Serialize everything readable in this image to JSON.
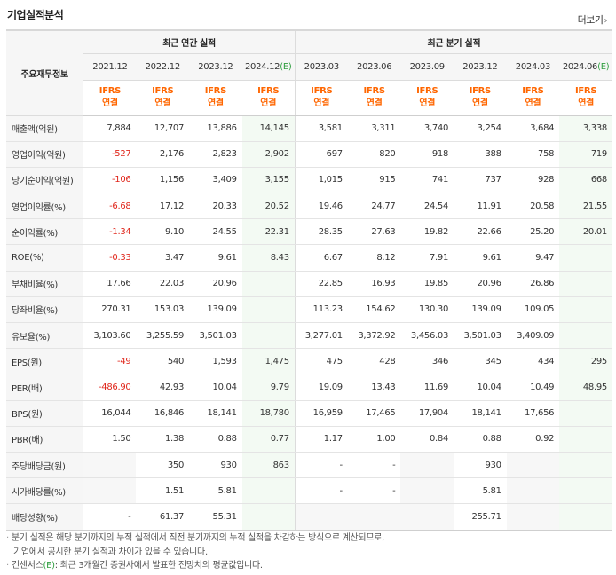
{
  "header": {
    "title": "기업실적분석",
    "more_label": "더보기",
    "more_icon": "chevron-right-icon"
  },
  "table": {
    "row_header_label": "주요재무정보",
    "group_annual": "최근 연간 실적",
    "group_quarter": "최근 분기 실적",
    "est_mark": "(E)",
    "annual_periods": [
      "2021.12",
      "2022.12",
      "2023.12",
      "2024.12"
    ],
    "annual_estimate": [
      false,
      false,
      false,
      true
    ],
    "quarter_periods": [
      "2023.03",
      "2023.06",
      "2023.09",
      "2023.12",
      "2024.03",
      "2024.06"
    ],
    "quarter_estimate": [
      false,
      false,
      false,
      false,
      false,
      true
    ],
    "ifrs_top": "IFRS",
    "ifrs_bottom": "연결",
    "rows": [
      {
        "label": "매출액(억원)",
        "values": [
          "7,884",
          "12,707",
          "13,886",
          "14,145",
          "3,581",
          "3,311",
          "3,740",
          "3,254",
          "3,684",
          "3,338"
        ]
      },
      {
        "label": "영업이익(억원)",
        "values": [
          "-527",
          "2,176",
          "2,823",
          "2,902",
          "697",
          "820",
          "918",
          "388",
          "758",
          "719"
        ]
      },
      {
        "label": "당기순이익(억원)",
        "values": [
          "-106",
          "1,156",
          "3,409",
          "3,155",
          "1,015",
          "915",
          "741",
          "737",
          "928",
          "668"
        ]
      },
      {
        "label": "영업이익률(%)",
        "values": [
          "-6.68",
          "17.12",
          "20.33",
          "20.52",
          "19.46",
          "24.77",
          "24.54",
          "11.91",
          "20.58",
          "21.55"
        ]
      },
      {
        "label": "순이익률(%)",
        "values": [
          "-1.34",
          "9.10",
          "24.55",
          "22.31",
          "28.35",
          "27.63",
          "19.82",
          "22.66",
          "25.20",
          "20.01"
        ]
      },
      {
        "label": "ROE(%)",
        "values": [
          "-0.33",
          "3.47",
          "9.61",
          "8.43",
          "6.67",
          "8.12",
          "7.91",
          "9.61",
          "9.47",
          ""
        ]
      },
      {
        "label": "부채비율(%)",
        "values": [
          "17.66",
          "22.03",
          "20.96",
          "",
          "22.85",
          "16.93",
          "19.85",
          "20.96",
          "26.86",
          ""
        ]
      },
      {
        "label": "당좌비율(%)",
        "values": [
          "270.31",
          "153.03",
          "139.09",
          "",
          "113.23",
          "154.62",
          "130.30",
          "139.09",
          "109.05",
          ""
        ]
      },
      {
        "label": "유보율(%)",
        "values": [
          "3,103.60",
          "3,255.59",
          "3,501.03",
          "",
          "3,277.01",
          "3,372.92",
          "3,456.03",
          "3,501.03",
          "3,409.09",
          ""
        ]
      },
      {
        "label": "EPS(원)",
        "values": [
          "-49",
          "540",
          "1,593",
          "1,475",
          "475",
          "428",
          "346",
          "345",
          "434",
          "295"
        ]
      },
      {
        "label": "PER(배)",
        "values": [
          "-486.90",
          "42.93",
          "10.04",
          "9.79",
          "19.09",
          "13.43",
          "11.69",
          "10.04",
          "10.49",
          "48.95"
        ]
      },
      {
        "label": "BPS(원)",
        "values": [
          "16,044",
          "16,846",
          "18,141",
          "18,780",
          "16,959",
          "17,465",
          "17,904",
          "18,141",
          "17,656",
          ""
        ]
      },
      {
        "label": "PBR(배)",
        "values": [
          "1.50",
          "1.38",
          "0.88",
          "0.77",
          "1.17",
          "1.00",
          "0.84",
          "0.88",
          "0.92",
          ""
        ]
      },
      {
        "label": "주당배당금(원)",
        "values": [
          "",
          "350",
          "930",
          "863",
          "-",
          "-",
          "",
          "930",
          "",
          ""
        ]
      },
      {
        "label": "시가배당률(%)",
        "values": [
          "",
          "1.51",
          "5.81",
          "",
          "-",
          "-",
          "",
          "5.81",
          "",
          ""
        ]
      },
      {
        "label": "배당성향(%)",
        "values": [
          "-",
          "61.37",
          "55.31",
          "",
          "",
          "",
          "",
          "255.71",
          "",
          ""
        ]
      }
    ]
  },
  "notes": {
    "bullet": "·",
    "line1": "분기 실적은 해당 분기까지의 누적 실적에서 직전 분기까지의 누적 실적을 차감하는 방식으로 계산되므로,",
    "line2": "기업에서 공시한 분기 실적과 차이가 있을 수 있습니다.",
    "line3_prefix": "컨센서스",
    "line3_mark": "(E)",
    "line3_rest": ": 최근 3개월간 증권사에서 발표한 전망치의 평균값입니다."
  },
  "colors": {
    "estimate": "#2f9e3f",
    "negative": "#e0261b",
    "ifrs": "#ff6600",
    "header_bg": "#f6f6f6"
  }
}
